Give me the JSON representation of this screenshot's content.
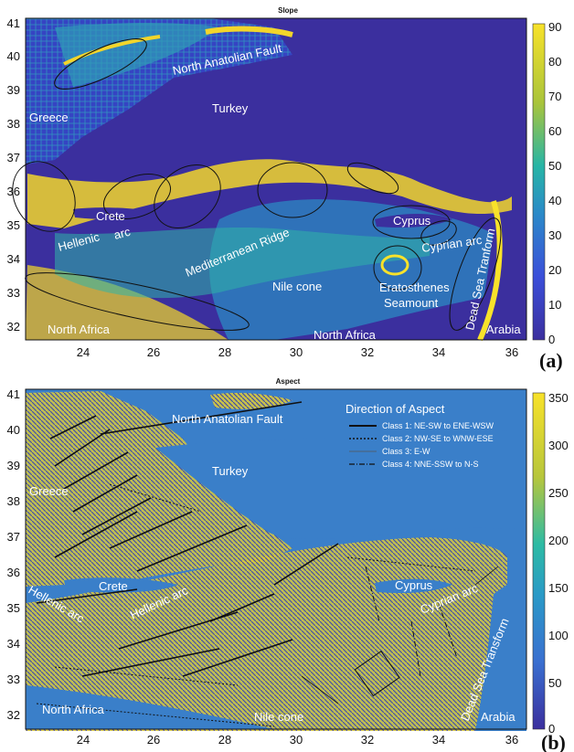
{
  "panel_a": {
    "title": "Slope",
    "panel_label": "(a)",
    "x_ticks": [
      "24",
      "26",
      "28",
      "30",
      "32",
      "34",
      "36"
    ],
    "y_ticks": [
      "41",
      "40",
      "39",
      "38",
      "37",
      "36",
      "35",
      "34",
      "33",
      "32"
    ],
    "colorbar_ticks": [
      "90",
      "80",
      "70",
      "60",
      "50",
      "40",
      "30",
      "20",
      "10",
      "0"
    ],
    "labels": {
      "naf": "North Anatolian Fault",
      "turkey": "Turkey",
      "greece": "Greece",
      "crete": "Crete",
      "hellenic": "Hellenic",
      "arc": "arc",
      "med_ridge": "Mediterranean Ridge",
      "cyprus": "Cyprus",
      "cyprian_arc": "Cyprian  arc",
      "nile_cone": "Nile cone",
      "eratosthenes": "Eratosthenes",
      "seamount": "Seamount",
      "north_africa_w": "North Africa",
      "north_africa_e": "North Africa",
      "arabia": "Arabia",
      "dead_sea": "Dead Sea Tranform"
    },
    "colors": {
      "background": "#3b2f9e",
      "high": "#f5d52a",
      "mid": "#27a6b8"
    }
  },
  "panel_b": {
    "title": "Aspect",
    "panel_label": "(b)",
    "x_ticks": [
      "24",
      "26",
      "28",
      "30",
      "32",
      "34",
      "36"
    ],
    "y_ticks": [
      "41",
      "40",
      "39",
      "38",
      "37",
      "36",
      "35",
      "34",
      "33",
      "32"
    ],
    "colorbar_ticks": [
      "350",
      "300",
      "250",
      "200",
      "150",
      "100",
      "50",
      "0"
    ],
    "legend": {
      "title": "Direction of Aspect",
      "items": [
        {
          "text": "Class 1: NE-SW to ENE-WSW",
          "style": "solid"
        },
        {
          "text": "Class 2: NW-SE to WNW-ESE",
          "style": "dotted"
        },
        {
          "text": "Class 3: E-W",
          "style": "thin"
        },
        {
          "text": "Class 4: NNE-SSW to N-S",
          "style": "dashdot"
        }
      ]
    },
    "labels": {
      "naf": "North Anatolian Fault",
      "turkey": "Turkey",
      "greece": "Greece",
      "crete": "Crete",
      "hellenic_arc_1": "Hellenic arc",
      "hellenic_arc_2": "Hellenic arc",
      "cyprus": "Cyprus",
      "cyprian_arc": "Cyprian arc",
      "nile_cone": "Nile cone",
      "north_africa": "North Africa",
      "arabia": "Arabia",
      "dead_sea": "Dead Sea Transform"
    },
    "colors": {
      "background": "#3a7fc9",
      "high": "#f2d63a",
      "dark": "#3b2f9e"
    }
  }
}
